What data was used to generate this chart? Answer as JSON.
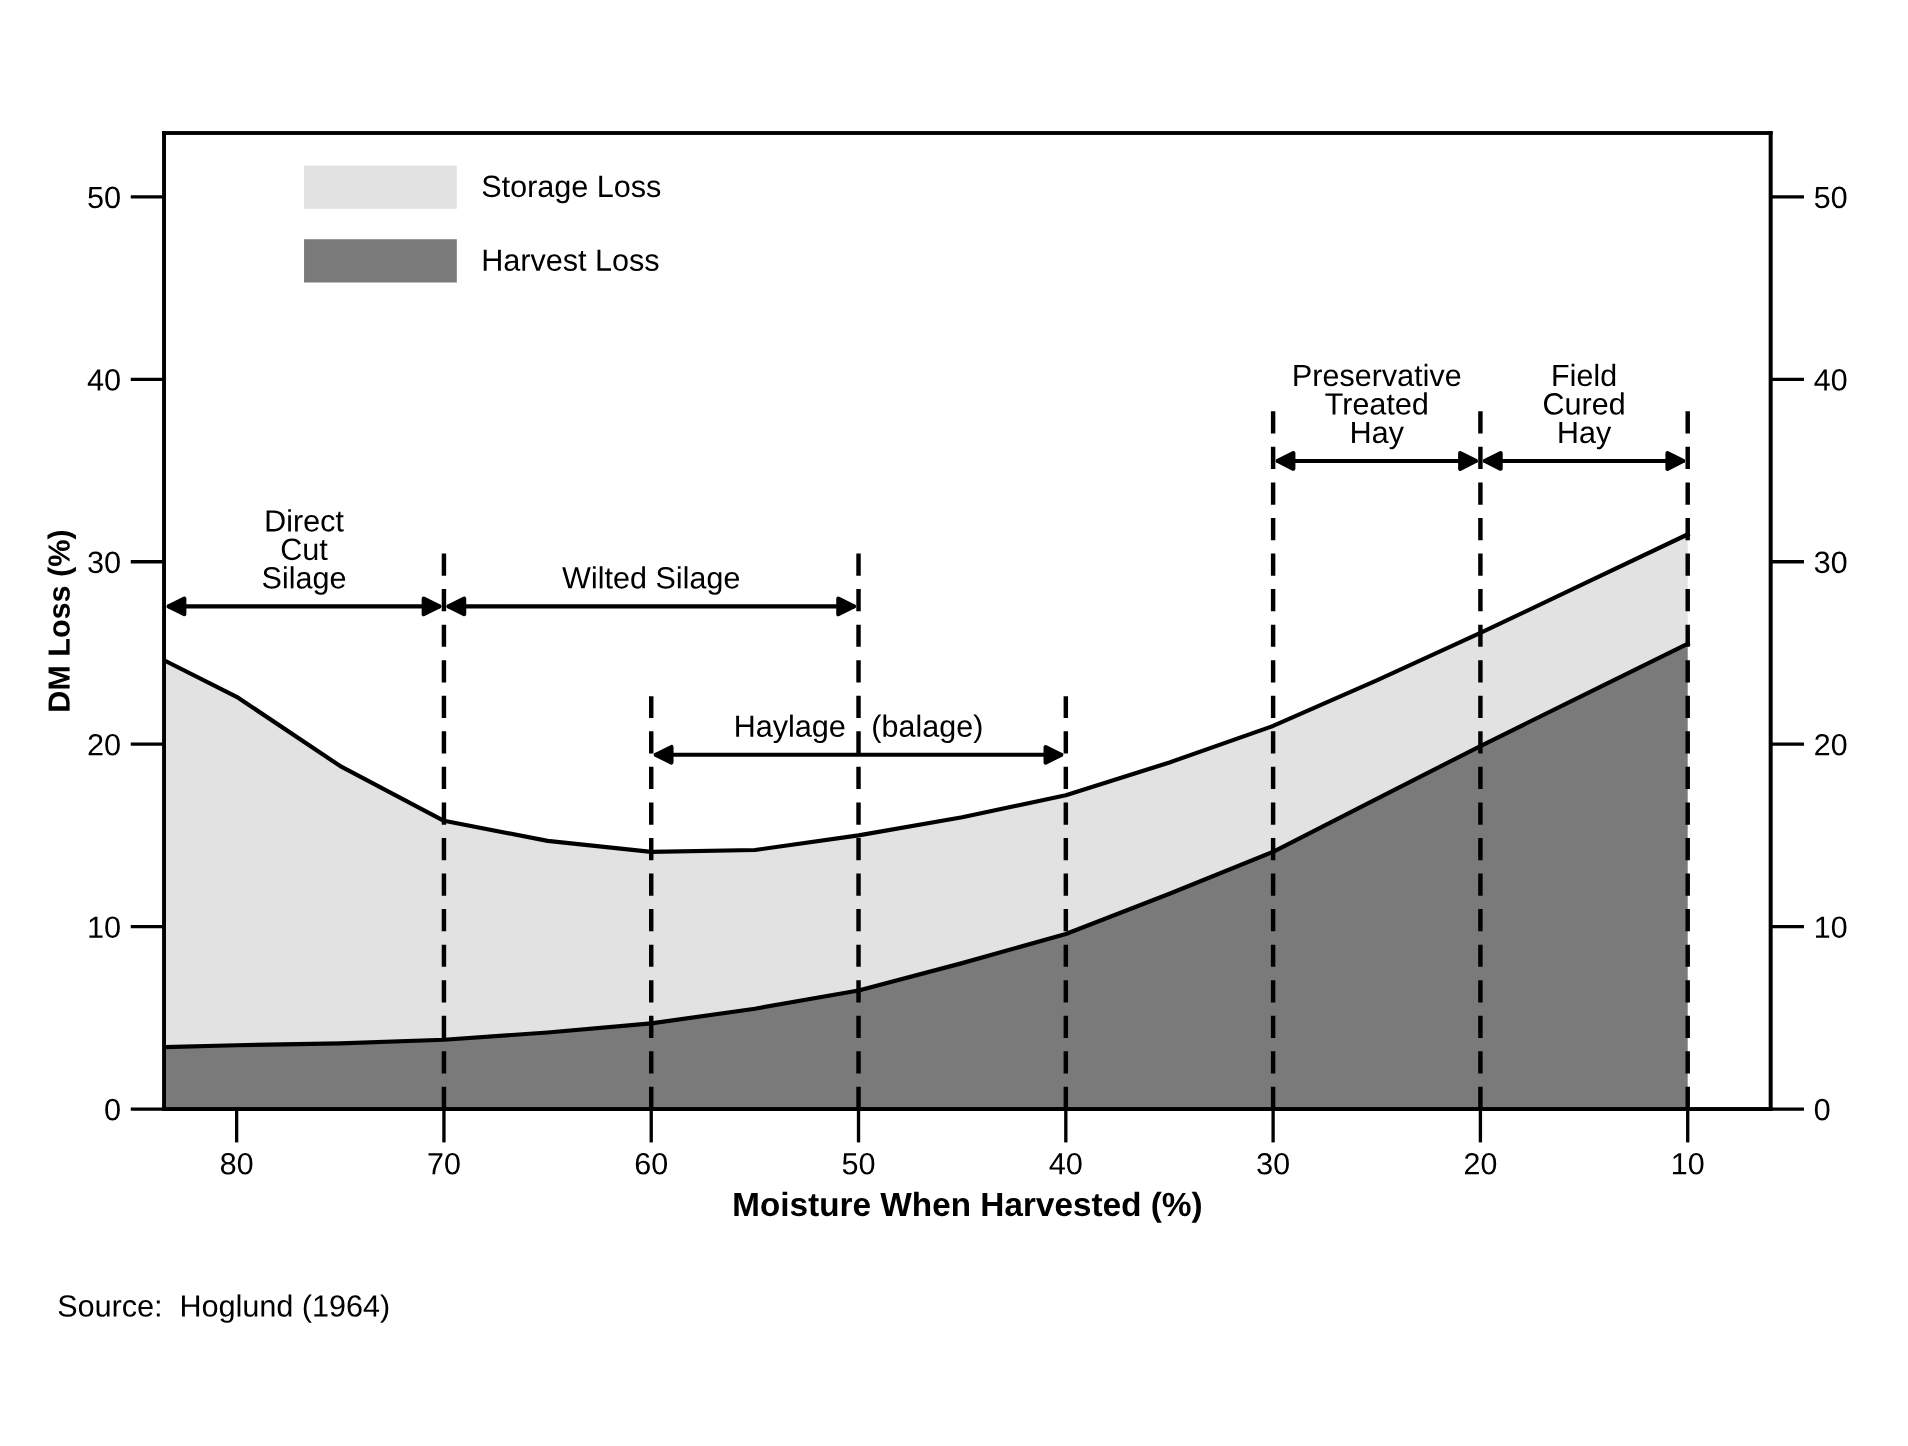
{
  "chart_data": {
    "type": "area",
    "stacked": true,
    "xlabel": "Moisture When Harvested (%)",
    "ylabel": "DM Loss (%)",
    "x": [
      83.5,
      80,
      75,
      70,
      65,
      60,
      55,
      50,
      45,
      40,
      35,
      30,
      25,
      20,
      15,
      10
    ],
    "series": [
      {
        "name": "Harvest Loss",
        "color": "#7a7a7a",
        "values": [
          3.4,
          3.5,
          3.6,
          3.8,
          4.2,
          4.7,
          5.5,
          6.5,
          8.0,
          9.6,
          11.8,
          14.1,
          17.0,
          19.9,
          22.7,
          25.5
        ]
      },
      {
        "name": "Storage Loss",
        "color": "#e2e2e2",
        "values": [
          21.2,
          19.1,
          15.2,
          12.0,
          10.5,
          9.4,
          8.7,
          8.5,
          8.0,
          7.6,
          7.2,
          6.9,
          6.5,
          6.2,
          6.1,
          6.0
        ]
      }
    ],
    "xlim": [
      83.5,
      6
    ],
    "xticks": [
      80,
      70,
      60,
      50,
      40,
      30,
      20,
      10
    ],
    "ylim": [
      0,
      53.5
    ],
    "yticks": [
      0,
      10,
      20,
      30,
      40,
      50
    ],
    "y2lim": [
      0,
      53.5
    ],
    "y2ticks": [
      0,
      10,
      20,
      30,
      40,
      50
    ],
    "ref_lines": [
      {
        "axis": "x",
        "value": 70,
        "line_style": "dashed"
      },
      {
        "axis": "x",
        "value": 60,
        "line_style": "dashed"
      },
      {
        "axis": "x",
        "value": 50,
        "line_style": "dashed"
      },
      {
        "axis": "x",
        "value": 40,
        "line_style": "dashed"
      },
      {
        "axis": "x",
        "value": 30,
        "line_style": "dashed"
      },
      {
        "axis": "x",
        "value": 20,
        "line_style": "dashed"
      },
      {
        "axis": "x",
        "value": 10,
        "line_style": "dashed"
      }
    ],
    "legend": "top left",
    "grid": false,
    "annotations": [
      "Direct\nCut\nSilage",
      "Wilted Silage",
      "Haylage   (balage)",
      "Preservative\nTreated\nHay",
      "Field\nCured\nHay",
      "Source:  Hoglund (1964)"
    ]
  }
}
